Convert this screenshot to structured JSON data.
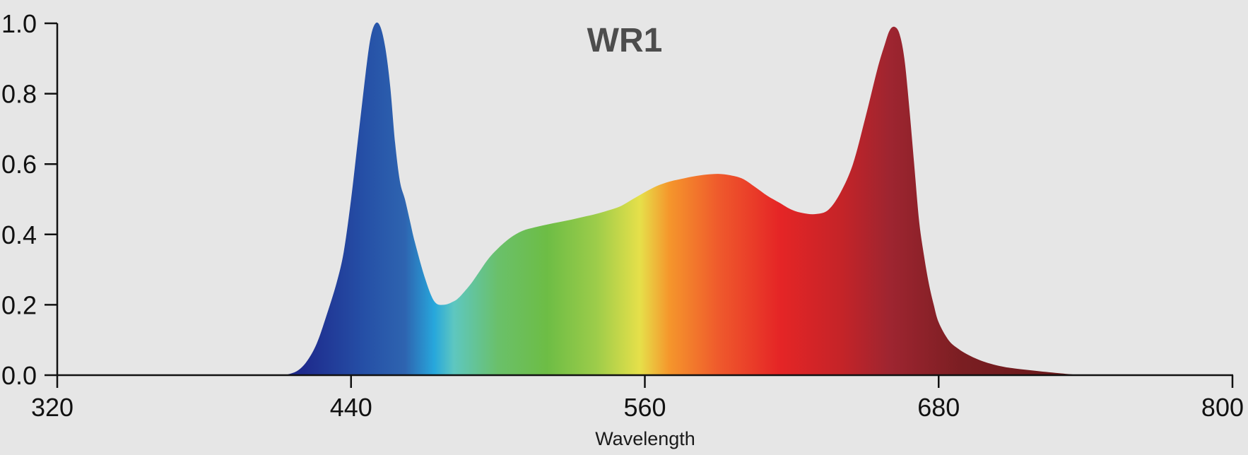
{
  "chart_data": {
    "type": "area",
    "title": "WR1",
    "xlabel": "Wavelength",
    "ylabel": "",
    "xlim": [
      320,
      800
    ],
    "ylim": [
      0,
      1
    ],
    "x_ticks": [
      "320",
      "440",
      "560",
      "680",
      "800"
    ],
    "y_ticks": [
      "0.0",
      "0.2",
      "0.4",
      "0.6",
      "0.8",
      "1.0"
    ],
    "grid": false,
    "legend": "none",
    "series": [
      {
        "x": [
          413,
          418,
          422,
          426,
          430,
          434,
          437,
          440,
          443,
          446,
          448,
          450,
          452,
          454,
          456,
          458,
          460,
          462,
          464,
          466,
          470,
          474,
          478,
          482,
          484,
          486,
          489,
          492,
          496,
          500,
          505,
          510,
          515,
          520,
          525,
          530,
          535,
          540,
          545,
          550,
          555,
          560,
          565,
          570,
          575,
          580,
          585,
          590,
          595,
          600,
          605,
          610,
          615,
          620,
          625,
          630,
          635,
          640,
          645,
          650,
          655,
          658,
          660,
          662,
          664,
          666,
          668,
          670,
          672,
          674,
          676,
          678,
          680,
          684,
          688,
          692,
          696,
          700,
          705,
          710,
          720,
          730,
          738
        ],
        "y": [
          0.0,
          0.012,
          0.04,
          0.09,
          0.17,
          0.26,
          0.35,
          0.5,
          0.68,
          0.86,
          0.96,
          1.0,
          0.99,
          0.93,
          0.82,
          0.66,
          0.55,
          0.5,
          0.44,
          0.38,
          0.28,
          0.21,
          0.2,
          0.21,
          0.22,
          0.235,
          0.26,
          0.29,
          0.33,
          0.36,
          0.39,
          0.41,
          0.42,
          0.428,
          0.435,
          0.442,
          0.45,
          0.458,
          0.468,
          0.48,
          0.5,
          0.52,
          0.538,
          0.55,
          0.558,
          0.565,
          0.57,
          0.572,
          0.568,
          0.558,
          0.535,
          0.51,
          0.49,
          0.47,
          0.46,
          0.458,
          0.47,
          0.52,
          0.6,
          0.73,
          0.87,
          0.94,
          0.98,
          0.99,
          0.97,
          0.9,
          0.76,
          0.6,
          0.44,
          0.34,
          0.26,
          0.2,
          0.15,
          0.1,
          0.075,
          0.058,
          0.045,
          0.035,
          0.026,
          0.02,
          0.012,
          0.005,
          0.0
        ]
      }
    ],
    "gradient_stops": [
      {
        "wavelength": 420,
        "color": "#1e2a8c"
      },
      {
        "wavelength": 445,
        "color": "#254fa6"
      },
      {
        "wavelength": 462,
        "color": "#2e64b0"
      },
      {
        "wavelength": 474,
        "color": "#27a7dc"
      },
      {
        "wavelength": 482,
        "color": "#5ec7c0"
      },
      {
        "wavelength": 500,
        "color": "#6ac06a"
      },
      {
        "wavelength": 520,
        "color": "#6dbd45"
      },
      {
        "wavelength": 540,
        "color": "#9ccc4a"
      },
      {
        "wavelength": 558,
        "color": "#e6e04a"
      },
      {
        "wavelength": 570,
        "color": "#f5962c"
      },
      {
        "wavelength": 590,
        "color": "#ef5a2c"
      },
      {
        "wavelength": 615,
        "color": "#e52526"
      },
      {
        "wavelength": 640,
        "color": "#c52428"
      },
      {
        "wavelength": 660,
        "color": "#9e2530"
      },
      {
        "wavelength": 690,
        "color": "#7a1e22"
      },
      {
        "wavelength": 740,
        "color": "#641618"
      }
    ],
    "axis_color": "#111111"
  }
}
